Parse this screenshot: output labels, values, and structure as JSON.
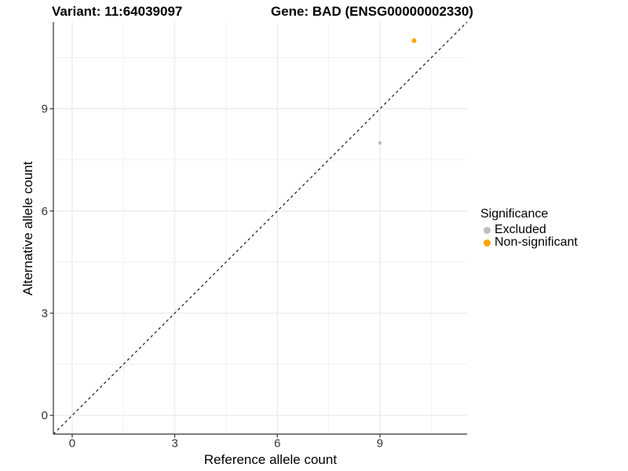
{
  "titles": {
    "variant": "Variant: 11:64039097",
    "gene": "Gene: BAD (ENSG00000002330)"
  },
  "axes": {
    "x_label": "Reference allele count",
    "y_label": "Alternative allele count"
  },
  "legend": {
    "title": "Significance",
    "items": [
      {
        "label": "Excluded",
        "color": "#BEBEBE"
      },
      {
        "label": "Non-significant",
        "color": "#FFA500"
      }
    ]
  },
  "colors": {
    "background": "#FFFFFF",
    "axis_line": "#333333",
    "tick_mark": "#333333",
    "tick_label": "#333333",
    "major_grid": "#E5E5E5",
    "minor_grid": "#F2F2F2",
    "identity_line": "#1A1A1A",
    "excluded_point": "#BEBEBE",
    "nonsignificant_point": "#FFA500"
  },
  "chart_data": {
    "type": "scatter",
    "title": "Variant: 11:64039097   Gene: BAD (ENSG00000002330)",
    "xlabel": "Reference allele count",
    "ylabel": "Alternative allele count",
    "xlim": [
      -0.55,
      11.55
    ],
    "ylim": [
      -0.55,
      11.55
    ],
    "x_ticks": [
      0,
      3,
      6,
      9
    ],
    "y_ticks": [
      0,
      3,
      6,
      9
    ],
    "x_minor_ticks": [
      1.5,
      4.5,
      7.5,
      10.5
    ],
    "y_minor_ticks": [
      1.5,
      4.5,
      7.5,
      10.5
    ],
    "grid": true,
    "legend_position": "right",
    "legend_title": "Significance",
    "identity_line": {
      "style": "dashed",
      "from": [
        -0.55,
        -0.55
      ],
      "to": [
        11.55,
        11.55
      ]
    },
    "series": [
      {
        "name": "Excluded",
        "color": "#BEBEBE",
        "point_radius": 2.3,
        "points": [
          {
            "x": 9,
            "y": 8
          }
        ]
      },
      {
        "name": "Non-significant",
        "color": "#FFA500",
        "point_radius": 3,
        "points": [
          {
            "x": 10,
            "y": 11
          }
        ]
      }
    ]
  }
}
